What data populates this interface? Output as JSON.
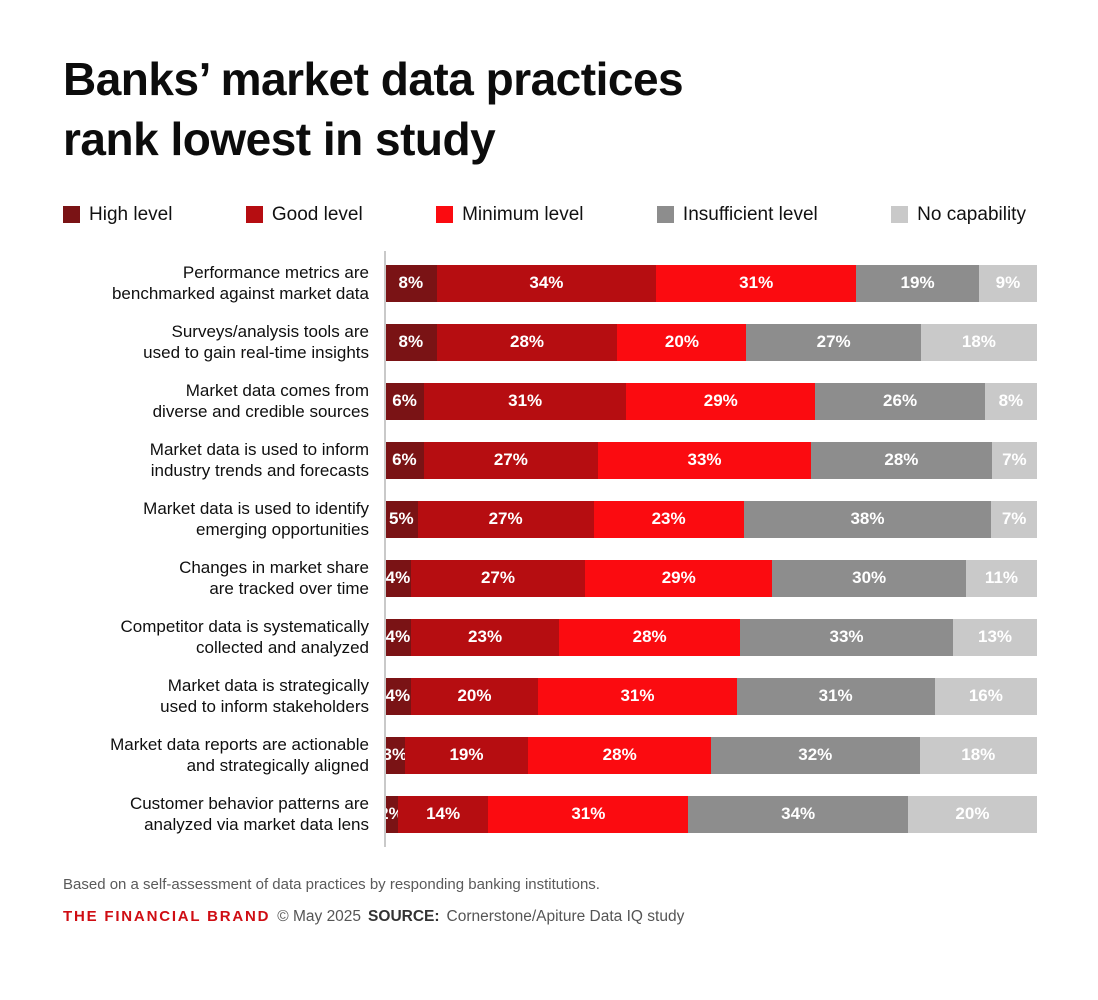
{
  "title": {
    "lines": [
      "Banks’ market data practices",
      "rank lowest in study"
    ]
  },
  "chart_data": {
    "type": "bar",
    "orientation": "horizontal",
    "stacked": true,
    "unit": "%",
    "xlim": [
      0,
      100
    ],
    "legend_position": "top",
    "value_labels_shown": true,
    "series": [
      {
        "name": "High level",
        "color": "#7a1315"
      },
      {
        "name": "Good level",
        "color": "#b60d11"
      },
      {
        "name": "Minimum level",
        "color": "#fb0b10"
      },
      {
        "name": "Insufficient level",
        "color": "#8d8d8d"
      },
      {
        "name": "No capability",
        "color": "#c9c9c9"
      }
    ],
    "rows": [
      {
        "label_lines": [
          "Performance metrics are",
          "benchmarked against market data"
        ],
        "values": [
          8,
          34,
          31,
          19,
          9
        ]
      },
      {
        "label_lines": [
          "Surveys/analysis tools are",
          "used to gain real-time insights"
        ],
        "values": [
          8,
          28,
          20,
          27,
          18
        ]
      },
      {
        "label_lines": [
          "Market data comes from",
          "diverse and credible sources"
        ],
        "values": [
          6,
          31,
          29,
          26,
          8
        ]
      },
      {
        "label_lines": [
          "Market data is used to inform",
          "industry trends and forecasts"
        ],
        "values": [
          6,
          27,
          33,
          28,
          7
        ]
      },
      {
        "label_lines": [
          "Market data is used to identify",
          "emerging opportunities"
        ],
        "values": [
          5,
          27,
          23,
          38,
          7
        ]
      },
      {
        "label_lines": [
          "Changes in market share",
          "are tracked over time"
        ],
        "values": [
          4,
          27,
          29,
          30,
          11
        ]
      },
      {
        "label_lines": [
          "Competitor data is systematically",
          "collected and analyzed"
        ],
        "values": [
          4,
          23,
          28,
          33,
          13
        ]
      },
      {
        "label_lines": [
          "Market data is strategically",
          "used to inform stakeholders"
        ],
        "values": [
          4,
          20,
          31,
          31,
          16
        ]
      },
      {
        "label_lines": [
          "Market data reports are actionable",
          "and strategically aligned"
        ],
        "values": [
          3,
          19,
          28,
          32,
          18
        ]
      },
      {
        "label_lines": [
          "Customer behavior patterns are",
          "analyzed via market data lens"
        ],
        "values": [
          2,
          14,
          31,
          34,
          20
        ]
      }
    ]
  },
  "footnote": "Based on a self-assessment of data practices by responding banking institutions.",
  "source": {
    "brand": "THE FINANCIAL BRAND",
    "brand_color": "#cf0d13",
    "copyright": "© May 2025",
    "source_label": "SOURCE:",
    "source_text": "Cornerstone/Apiture Data IQ study"
  }
}
